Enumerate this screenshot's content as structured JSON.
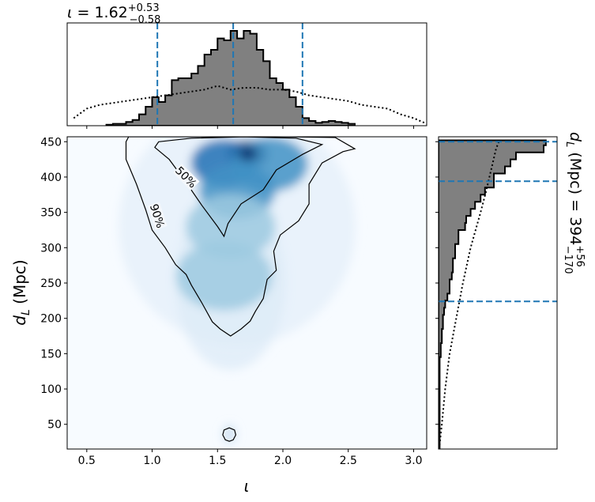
{
  "chart_data": {
    "type": "joint-posterior",
    "colors": {
      "accent": "#1f77b4",
      "hist_fill": "#808080",
      "contour": "#000000",
      "cmap": "Blues"
    },
    "top_title": {
      "param": "ι",
      "median": "1.62",
      "plus": "+0.53",
      "minus": "−0.58"
    },
    "right_title": {
      "param_sym": "d",
      "param_sub": "L",
      "unit": " (Mpc) = ",
      "median": "394",
      "plus": "+56",
      "minus": "−170"
    },
    "joint": {
      "xlabel": "ι",
      "ylabel_sym": "d",
      "ylabel_sub": "L",
      "ylabel_unit": " (Mpc)",
      "xlim": [
        0.35,
        3.1
      ],
      "ylim": [
        15,
        457
      ],
      "xticks": [
        "0.5",
        "1.0",
        "1.5",
        "2.0",
        "2.5",
        "3.0"
      ],
      "yticks": [
        "50",
        "100",
        "150",
        "200",
        "250",
        "300",
        "350",
        "400",
        "450"
      ],
      "density_peaks": [
        {
          "x": 1.73,
          "y": 433,
          "w": 1.0
        },
        {
          "x": 1.55,
          "y": 420,
          "w": 0.6
        },
        {
          "x": 1.9,
          "y": 418,
          "w": 0.45
        },
        {
          "x": 1.65,
          "y": 380,
          "w": 0.45
        },
        {
          "x": 1.6,
          "y": 330,
          "w": 0.25
        },
        {
          "x": 1.55,
          "y": 260,
          "w": 0.15
        }
      ],
      "contours": [
        {
          "label": "50%",
          "label_pos": [
            1.26,
            400
          ],
          "label_angle": 45,
          "path": [
            [
              1.05,
              450
            ],
            [
              1.3,
              455
            ],
            [
              1.7,
              457
            ],
            [
              2.1,
              455
            ],
            [
              2.3,
              446
            ],
            [
              2.15,
              432
            ],
            [
              1.95,
              410
            ],
            [
              1.85,
              382
            ],
            [
              1.68,
              362
            ],
            [
              1.58,
              334
            ],
            [
              1.55,
              316
            ],
            [
              1.5,
              330
            ],
            [
              1.38,
              360
            ],
            [
              1.25,
              395
            ],
            [
              1.13,
              425
            ],
            [
              1.02,
              442
            ],
            [
              1.05,
              450
            ]
          ]
        },
        {
          "label": "90%",
          "label_pos": [
            1.04,
            345
          ],
          "label_angle": 72,
          "path": [
            [
              0.82,
              457
            ],
            [
              1.0,
              457
            ],
            [
              1.5,
              457
            ],
            [
              2.0,
              457
            ],
            [
              2.4,
              456
            ],
            [
              2.55,
              440
            ],
            [
              2.46,
              436
            ],
            [
              2.3,
              420
            ],
            [
              2.2,
              390
            ],
            [
              2.2,
              362
            ],
            [
              2.12,
              338
            ],
            [
              1.98,
              318
            ],
            [
              1.93,
              295
            ],
            [
              1.95,
              268
            ],
            [
              1.88,
              255
            ],
            [
              1.85,
              228
            ],
            [
              1.79,
              210
            ],
            [
              1.75,
              196
            ],
            [
              1.68,
              185
            ],
            [
              1.6,
              175
            ],
            [
              1.52,
              185
            ],
            [
              1.46,
              195
            ],
            [
              1.38,
              222
            ],
            [
              1.3,
              247
            ],
            [
              1.26,
              262
            ],
            [
              1.18,
              276
            ],
            [
              1.1,
              300
            ],
            [
              1.0,
              325
            ],
            [
              0.95,
              354
            ],
            [
              0.88,
              390
            ],
            [
              0.8,
              425
            ],
            [
              0.8,
              450
            ],
            [
              0.82,
              457
            ]
          ]
        },
        {
          "label": "",
          "label_pos": null,
          "label_angle": 0,
          "path": [
            [
              1.59,
              45
            ],
            [
              1.63,
              42
            ],
            [
              1.64,
              35
            ],
            [
              1.62,
              28
            ],
            [
              1.59,
              26
            ],
            [
              1.56,
              28
            ],
            [
              1.54,
              35
            ],
            [
              1.55,
              42
            ],
            [
              1.59,
              45
            ]
          ]
        }
      ]
    },
    "top_marginal": {
      "quantile_lines": [
        1.04,
        1.62,
        2.15
      ],
      "hist_edges": [
        0.65,
        0.7,
        0.75,
        0.8,
        0.85,
        0.9,
        0.95,
        1.0,
        1.05,
        1.1,
        1.15,
        1.2,
        1.25,
        1.3,
        1.35,
        1.4,
        1.45,
        1.5,
        1.55,
        1.6,
        1.65,
        1.7,
        1.75,
        1.8,
        1.85,
        1.9,
        1.95,
        2.0,
        2.05,
        2.1,
        2.15,
        2.2,
        2.25,
        2.3,
        2.35,
        2.4,
        2.45,
        2.5,
        2.55
      ],
      "hist_values": [
        0.01,
        0.02,
        0.02,
        0.04,
        0.06,
        0.12,
        0.2,
        0.3,
        0.25,
        0.32,
        0.48,
        0.5,
        0.5,
        0.55,
        0.63,
        0.75,
        0.8,
        0.92,
        0.9,
        1.0,
        0.92,
        1.0,
        0.97,
        0.8,
        0.68,
        0.5,
        0.45,
        0.38,
        0.3,
        0.2,
        0.08,
        0.05,
        0.03,
        0.04,
        0.05,
        0.04,
        0.03,
        0.02
      ],
      "prior_x": [
        0.4,
        0.5,
        0.6,
        0.7,
        0.8,
        0.9,
        1.0,
        1.1,
        1.2,
        1.3,
        1.4,
        1.5,
        1.6,
        1.7,
        1.8,
        1.9,
        2.0,
        2.1,
        2.2,
        2.3,
        2.4,
        2.5,
        2.6,
        2.7,
        2.8,
        2.9,
        3.0,
        3.1
      ],
      "prior_y": [
        0.08,
        0.18,
        0.22,
        0.24,
        0.26,
        0.28,
        0.3,
        0.32,
        0.34,
        0.36,
        0.38,
        0.42,
        0.38,
        0.4,
        0.4,
        0.38,
        0.38,
        0.36,
        0.32,
        0.3,
        0.28,
        0.26,
        0.22,
        0.2,
        0.18,
        0.12,
        0.08,
        0.02
      ]
    },
    "right_marginal": {
      "quantile_lines": [
        224,
        394,
        450
      ],
      "hist_edges": [
        15,
        25,
        35,
        45,
        55,
        65,
        75,
        85,
        95,
        105,
        115,
        125,
        135,
        145,
        155,
        165,
        175,
        185,
        195,
        205,
        215,
        225,
        235,
        245,
        255,
        265,
        275,
        285,
        295,
        305,
        315,
        325,
        335,
        345,
        355,
        365,
        375,
        385,
        395,
        405,
        415,
        425,
        435,
        445,
        452
      ],
      "hist_values": [
        0.01,
        0.01,
        0.01,
        0.01,
        0.01,
        0.01,
        0.01,
        0.01,
        0.01,
        0.01,
        0.01,
        0.01,
        0.01,
        0.02,
        0.02,
        0.03,
        0.03,
        0.04,
        0.04,
        0.05,
        0.06,
        0.08,
        0.1,
        0.1,
        0.12,
        0.13,
        0.13,
        0.15,
        0.15,
        0.18,
        0.18,
        0.24,
        0.25,
        0.29,
        0.33,
        0.38,
        0.42,
        0.5,
        0.5,
        0.6,
        0.65,
        0.7,
        0.95,
        0.97
      ],
      "prior_y": [
        15,
        50,
        100,
        150,
        200,
        250,
        300,
        350,
        380,
        400,
        420,
        440,
        452
      ],
      "prior_x": [
        0.005,
        0.03,
        0.06,
        0.1,
        0.16,
        0.22,
        0.29,
        0.38,
        0.43,
        0.46,
        0.49,
        0.52,
        0.55
      ]
    }
  }
}
